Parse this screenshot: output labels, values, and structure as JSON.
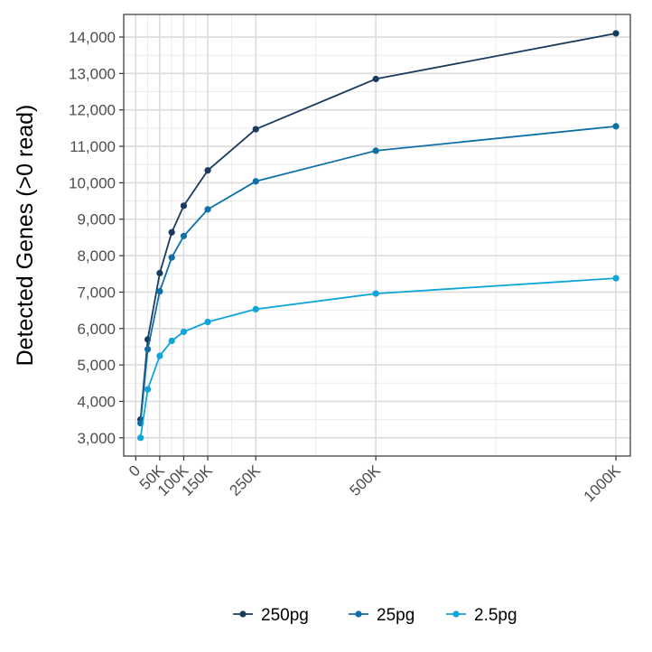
{
  "chart_data": {
    "type": "line",
    "title": "",
    "xlabel": "",
    "ylabel": "Detected Genes (>0 read)",
    "x": [
      10000,
      25000,
      50000,
      75000,
      100000,
      150000,
      250000,
      500000,
      1000000
    ],
    "xlim": [
      -25000,
      1030000
    ],
    "ylim": [
      2500,
      14620
    ],
    "x_ticks": [
      0,
      50000,
      100000,
      150000,
      250000,
      500000,
      1000000
    ],
    "x_tick_labels": [
      "0",
      "50K",
      "100K",
      "150K",
      "250K",
      "500K",
      "1000K"
    ],
    "x_minor_ticks": [
      25000,
      75000,
      125000,
      200000,
      375000,
      750000
    ],
    "y_ticks": [
      3000,
      4000,
      5000,
      6000,
      7000,
      8000,
      9000,
      10000,
      11000,
      12000,
      13000,
      14000
    ],
    "y_tick_labels": [
      "3,000",
      "4,000",
      "5,000",
      "6,000",
      "7,000",
      "8,000",
      "9,000",
      "10,000",
      "11,000",
      "12,000",
      "13,000",
      "14,000"
    ],
    "series": [
      {
        "name": "250pg",
        "color": "#1a3a5e",
        "values": [
          3500,
          5700,
          7520,
          8640,
          9370,
          10340,
          11470,
          12850,
          14100
        ]
      },
      {
        "name": "25pg",
        "color": "#0f6fa6",
        "values": [
          3400,
          5430,
          7020,
          7950,
          8540,
          9270,
          10040,
          10880,
          11550
        ]
      },
      {
        "name": "2.5pg",
        "color": "#0ea5d8",
        "values": [
          3000,
          4330,
          5250,
          5660,
          5910,
          6180,
          6530,
          6960,
          7380
        ]
      }
    ],
    "grid": true,
    "legend_position": "bottom"
  }
}
